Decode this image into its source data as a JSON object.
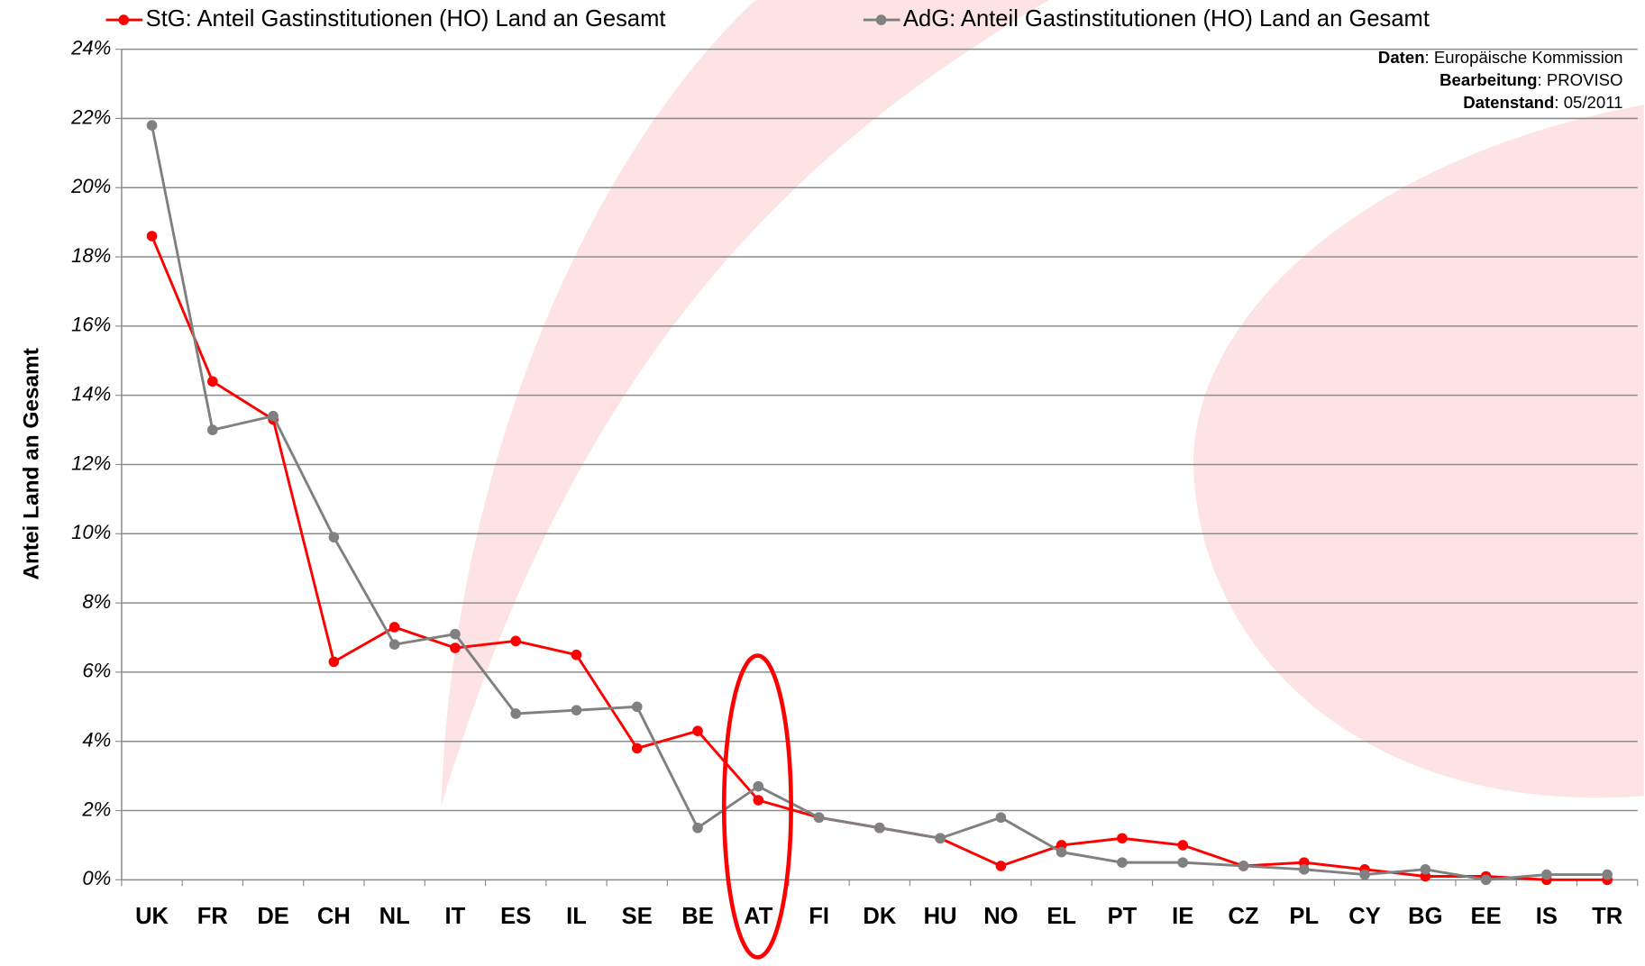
{
  "chart_data": {
    "type": "line",
    "y_axis_label": "Antei Land an Gesamt",
    "categories": [
      "UK",
      "FR",
      "DE",
      "CH",
      "NL",
      "IT",
      "ES",
      "IL",
      "SE",
      "BE",
      "AT",
      "FI",
      "DK",
      "HU",
      "NO",
      "EL",
      "PT",
      "IE",
      "CZ",
      "PL",
      "CY",
      "BG",
      "EE",
      "IS",
      "TR"
    ],
    "series": [
      {
        "name": "StG: Anteil Gastinstitutionen (HO) Land an Gesamt",
        "color": "#ff0000",
        "values": [
          18.6,
          14.4,
          13.3,
          6.3,
          7.3,
          6.7,
          6.9,
          6.5,
          3.8,
          4.3,
          2.3,
          1.8,
          1.5,
          1.2,
          0.4,
          1.0,
          1.2,
          1.0,
          0.4,
          0.5,
          0.3,
          0.1,
          0.1,
          0,
          0
        ]
      },
      {
        "name": "AdG: Anteil Gastinstitutionen (HO) Land an Gesamt",
        "color": "#808080",
        "values": [
          21.8,
          13.0,
          13.4,
          9.9,
          6.8,
          7.1,
          4.8,
          4.9,
          5.0,
          1.5,
          2.7,
          1.8,
          1.5,
          1.2,
          1.8,
          0.8,
          0.5,
          0.5,
          0.4,
          0.3,
          0.15,
          0.3,
          0,
          0.15,
          0.15
        ]
      }
    ],
    "ylim": [
      0,
      24
    ],
    "yticks": [
      {
        "value": 0,
        "label": "0%"
      },
      {
        "value": 2,
        "label": "2%"
      },
      {
        "value": 4,
        "label": "4%"
      },
      {
        "value": 6,
        "label": "6%"
      },
      {
        "value": 8,
        "label": "8%"
      },
      {
        "value": 10,
        "label": "10%"
      },
      {
        "value": 12,
        "label": "12%"
      },
      {
        "value": 14,
        "label": "14%"
      },
      {
        "value": 16,
        "label": "16%"
      },
      {
        "value": 18,
        "label": "18%"
      },
      {
        "value": 20,
        "label": "20%"
      },
      {
        "value": 22,
        "label": "22%"
      },
      {
        "value": 24,
        "label": "24%"
      }
    ],
    "grid": true,
    "source_notes": [
      {
        "label": "Daten",
        "text": ": Europäische Kommission"
      },
      {
        "label": "Bearbeitung",
        "text": ": PROVISO"
      },
      {
        "label": "Datenstand",
        "text": ": 05/2011"
      }
    ]
  }
}
